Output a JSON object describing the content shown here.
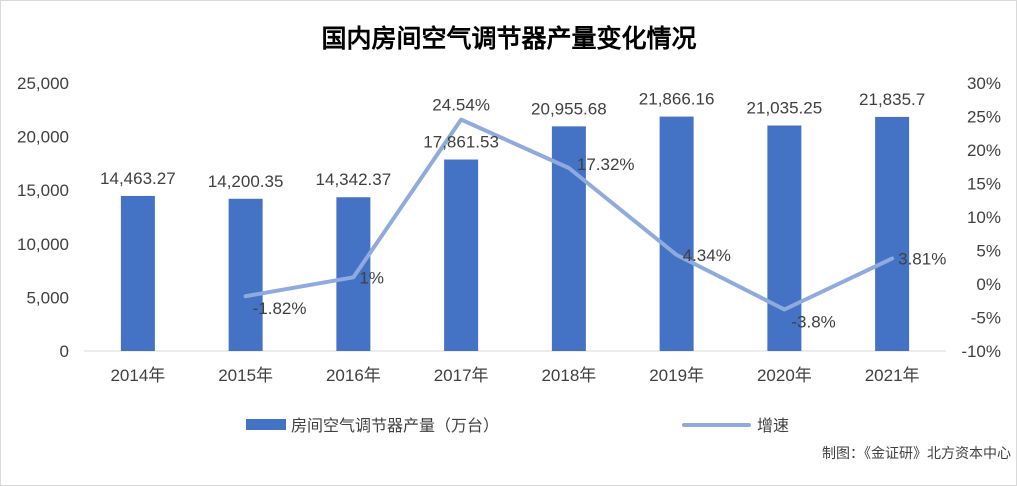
{
  "chart_data": {
    "type": "bar",
    "title": "国内房间空气调节器产量变化情况",
    "categories": [
      "2014年",
      "2015年",
      "2016年",
      "2017年",
      "2018年",
      "2019年",
      "2020年",
      "2021年"
    ],
    "series": [
      {
        "name": "房间空气调节器产量（万台）",
        "type": "bar",
        "axis": "left",
        "values": [
          14463.27,
          14200.35,
          14342.37,
          17861.53,
          20955.68,
          21866.16,
          21035.25,
          21835.7
        ],
        "labels": [
          "14,463.27",
          "14,200.35",
          "14,342.37",
          "17,861.53",
          "20,955.68",
          "21,866.16",
          "21,035.25",
          "21,835.7"
        ]
      },
      {
        "name": "增速",
        "type": "line",
        "axis": "right",
        "values": [
          null,
          -1.82,
          1,
          24.54,
          17.32,
          4.34,
          -3.8,
          3.81
        ],
        "labels": [
          "",
          "-1.82%",
          "1%",
          "24.54%",
          "17.32%",
          "4.34%",
          "-3.8%",
          "3.81%"
        ]
      }
    ],
    "y_left": {
      "min": 0,
      "max": 25000,
      "ticks": [
        "0",
        "5,000",
        "10,000",
        "15,000",
        "20,000",
        "25,000"
      ]
    },
    "y_right": {
      "min": -10,
      "max": 30,
      "ticks": [
        "-10%",
        "-5%",
        "0%",
        "5%",
        "10%",
        "15%",
        "20%",
        "25%",
        "30%"
      ]
    },
    "grid": false,
    "legend_position": "bottom",
    "source": "制图：《金证研》北方资本中心",
    "colors": {
      "bar": "#4472c4",
      "line": "#8faadc",
      "axis": "#d9d9d9",
      "text": "#404040"
    }
  }
}
